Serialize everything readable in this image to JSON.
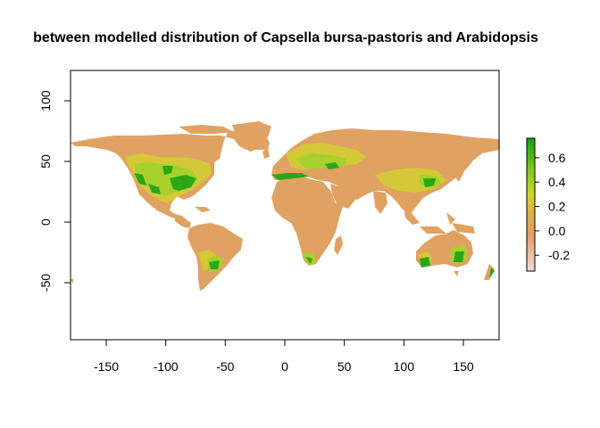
{
  "chart_data": {
    "type": "heatmap",
    "title": "between modelled distribution of Capsella bursa-pastoris and Arabidopsis",
    "x_ticks": [
      "-150",
      "-100",
      "-50",
      "0",
      "50",
      "100",
      "150"
    ],
    "x_tick_values": [
      -150,
      -100,
      -50,
      0,
      50,
      100,
      150
    ],
    "y_ticks": [
      "100",
      "50",
      "0",
      "-50"
    ],
    "y_tick_values": [
      100,
      50,
      0,
      -50
    ],
    "xlim": [
      -180,
      180
    ],
    "ylim": [
      -97,
      125
    ],
    "legend": {
      "position": "right",
      "range": [
        -0.33,
        0.76
      ],
      "tick_labels": [
        "0.6",
        "0.4",
        "0.2",
        "0.0",
        "-0.2"
      ],
      "tick_values": [
        0.6,
        0.4,
        0.2,
        0.0,
        -0.2
      ],
      "color_stops": [
        {
          "value": -0.33,
          "color": "#f3dcd8"
        },
        {
          "value": -0.05,
          "color": "#e0a06a"
        },
        {
          "value": 0.15,
          "color": "#d9b23c"
        },
        {
          "value": 0.3,
          "color": "#cfd62a"
        },
        {
          "value": 0.5,
          "color": "#7ec81e"
        },
        {
          "value": 0.76,
          "color": "#13a013"
        }
      ]
    },
    "colors": {
      "land": "#e0a262",
      "hot_low": "#d5c838",
      "hot_mid": "#a7d12a",
      "hot_high": "#2aa61a"
    }
  }
}
